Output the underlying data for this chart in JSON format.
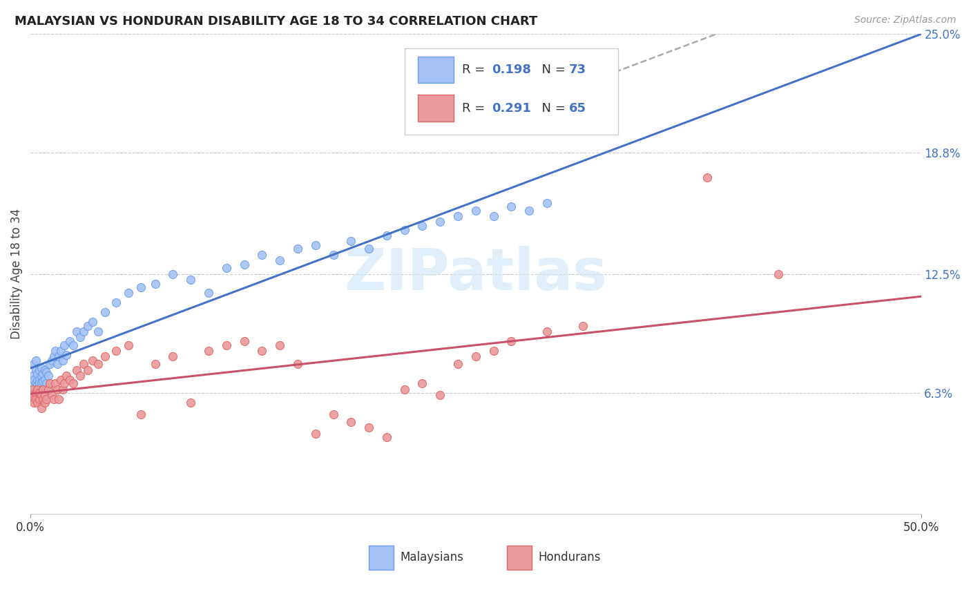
{
  "title": "MALAYSIAN VS HONDURAN DISABILITY AGE 18 TO 34 CORRELATION CHART",
  "source": "Source: ZipAtlas.com",
  "ylabel_label": "Disability Age 18 to 34",
  "watermark": "ZIPatlas",
  "malaysian_R": 0.198,
  "malaysian_N": 73,
  "honduran_R": 0.291,
  "honduran_N": 65,
  "malaysian_color": "#a4c2f4",
  "honduran_color": "#ea9999",
  "malaysian_edge_color": "#6d9eeb",
  "honduran_edge_color": "#e06666",
  "trend_malaysian_color": "#4472c4",
  "trend_honduran_color": "#c9516a",
  "trend_gray_color": "#aaaaaa",
  "background_color": "#ffffff",
  "grid_color": "#cccccc",
  "xlim": [
    0.0,
    0.5
  ],
  "ylim": [
    0.0,
    0.25
  ],
  "right_ytick_vals": [
    0.063,
    0.125,
    0.188,
    0.25
  ],
  "right_ytick_labels": [
    "6.3%",
    "12.5%",
    "18.8%",
    "25.0%"
  ],
  "right_tick_color": "#4472c4",
  "title_fontsize": 13,
  "source_fontsize": 10,
  "axis_label_fontsize": 12,
  "tick_fontsize": 12,
  "legend_fontsize": 13,
  "watermark_fontsize": 60,
  "watermark_color": "#cce5f5",
  "watermark_alpha": 0.6,
  "malay_x": [
    0.001,
    0.001,
    0.002,
    0.002,
    0.002,
    0.003,
    0.003,
    0.003,
    0.004,
    0.004,
    0.004,
    0.005,
    0.005,
    0.005,
    0.005,
    0.006,
    0.006,
    0.006,
    0.006,
    0.007,
    0.007,
    0.007,
    0.008,
    0.008,
    0.009,
    0.009,
    0.01,
    0.01,
    0.011,
    0.012,
    0.013,
    0.014,
    0.015,
    0.016,
    0.017,
    0.018,
    0.019,
    0.02,
    0.022,
    0.024,
    0.026,
    0.028,
    0.03,
    0.032,
    0.035,
    0.038,
    0.042,
    0.048,
    0.055,
    0.062,
    0.07,
    0.08,
    0.09,
    0.1,
    0.11,
    0.12,
    0.13,
    0.14,
    0.15,
    0.16,
    0.17,
    0.18,
    0.19,
    0.2,
    0.21,
    0.22,
    0.23,
    0.24,
    0.25,
    0.26,
    0.27,
    0.28,
    0.29
  ],
  "malay_y": [
    0.072,
    0.068,
    0.065,
    0.07,
    0.078,
    0.075,
    0.068,
    0.08,
    0.07,
    0.073,
    0.067,
    0.065,
    0.07,
    0.068,
    0.075,
    0.065,
    0.068,
    0.072,
    0.076,
    0.065,
    0.069,
    0.073,
    0.07,
    0.075,
    0.068,
    0.074,
    0.065,
    0.072,
    0.078,
    0.08,
    0.082,
    0.085,
    0.078,
    0.082,
    0.085,
    0.08,
    0.088,
    0.083,
    0.09,
    0.088,
    0.095,
    0.092,
    0.095,
    0.098,
    0.1,
    0.095,
    0.105,
    0.11,
    0.115,
    0.118,
    0.12,
    0.125,
    0.122,
    0.115,
    0.128,
    0.13,
    0.135,
    0.132,
    0.138,
    0.14,
    0.135,
    0.142,
    0.138,
    0.145,
    0.148,
    0.15,
    0.152,
    0.155,
    0.158,
    0.155,
    0.16,
    0.158,
    0.162
  ],
  "hondu_x": [
    0.001,
    0.001,
    0.002,
    0.002,
    0.003,
    0.003,
    0.004,
    0.004,
    0.005,
    0.005,
    0.006,
    0.006,
    0.007,
    0.007,
    0.008,
    0.008,
    0.009,
    0.01,
    0.011,
    0.012,
    0.013,
    0.014,
    0.015,
    0.016,
    0.017,
    0.018,
    0.019,
    0.02,
    0.022,
    0.024,
    0.026,
    0.028,
    0.03,
    0.032,
    0.035,
    0.038,
    0.042,
    0.048,
    0.055,
    0.062,
    0.07,
    0.08,
    0.09,
    0.1,
    0.11,
    0.12,
    0.13,
    0.14,
    0.15,
    0.16,
    0.17,
    0.18,
    0.19,
    0.2,
    0.21,
    0.22,
    0.23,
    0.24,
    0.25,
    0.26,
    0.27,
    0.29,
    0.31,
    0.38,
    0.42
  ],
  "hondu_y": [
    0.065,
    0.062,
    0.06,
    0.058,
    0.063,
    0.06,
    0.058,
    0.065,
    0.06,
    0.063,
    0.055,
    0.062,
    0.06,
    0.065,
    0.058,
    0.062,
    0.06,
    0.065,
    0.068,
    0.062,
    0.06,
    0.068,
    0.065,
    0.06,
    0.07,
    0.065,
    0.068,
    0.072,
    0.07,
    0.068,
    0.075,
    0.072,
    0.078,
    0.075,
    0.08,
    0.078,
    0.082,
    0.085,
    0.088,
    0.052,
    0.078,
    0.082,
    0.058,
    0.085,
    0.088,
    0.09,
    0.085,
    0.088,
    0.078,
    0.042,
    0.052,
    0.048,
    0.045,
    0.04,
    0.065,
    0.068,
    0.062,
    0.078,
    0.082,
    0.085,
    0.09,
    0.095,
    0.098,
    0.175,
    0.125
  ]
}
